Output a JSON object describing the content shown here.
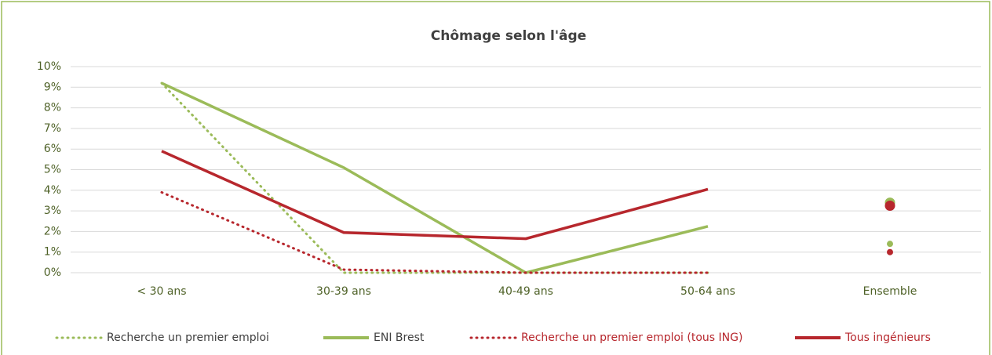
{
  "chart_data": {
    "type": "line",
    "title": "Chômage selon l'âge",
    "categories": [
      "< 30 ans",
      "30-39 ans",
      "40-49 ans",
      "50-64 ans",
      "Ensemble"
    ],
    "summary_as_point": true,
    "ylim": [
      0,
      10
    ],
    "yticks": [
      {
        "value": 0,
        "label": "0%"
      },
      {
        "value": 1,
        "label": "1%"
      },
      {
        "value": 2,
        "label": "2%"
      },
      {
        "value": 3,
        "label": "3%"
      },
      {
        "value": 4,
        "label": "4%"
      },
      {
        "value": 5,
        "label": "5%"
      },
      {
        "value": 6,
        "label": "6%"
      },
      {
        "value": 7,
        "label": "7%"
      },
      {
        "value": 8,
        "label": "8%"
      },
      {
        "value": 9,
        "label": "9%"
      },
      {
        "value": 10,
        "label": "10%"
      }
    ],
    "grid": true,
    "legend": "bottom",
    "series": [
      {
        "name": "Recherche un premier emploi",
        "color": "#9bbb59",
        "dash": "dotted",
        "legend_text_color": "#404040",
        "values": [
          9.2,
          0,
          0,
          0,
          1.4
        ]
      },
      {
        "name": "ENI Brest",
        "color": "#9bbb59",
        "dash": "solid",
        "legend_text_color": "#404040",
        "values": [
          9.2,
          5.1,
          0,
          2.25,
          3.4
        ]
      },
      {
        "name": "Recherche un premier emploi  (tous ING)",
        "color": "#b7272d",
        "dash": "dotted",
        "legend_text_color": "#b7272d",
        "values": [
          3.9,
          0.15,
          0,
          0,
          1.0
        ]
      },
      {
        "name": "Tous ingénieurs",
        "color": "#b7272d",
        "dash": "solid",
        "legend_text_color": "#b7272d",
        "values": [
          5.9,
          1.95,
          1.65,
          4.05,
          3.25
        ]
      }
    ]
  }
}
